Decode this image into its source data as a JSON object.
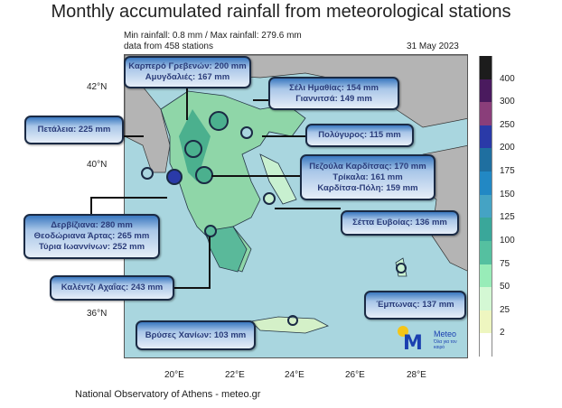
{
  "title": "Monthly accumulated rainfall from meteorological stations",
  "info": {
    "minmax": "Min rainfall: 0.8 mm / Max rainfall: 279.6 mm",
    "stations": "data from 458 stations",
    "date": "31 May 2023"
  },
  "labels": {
    "karpero": [
      "Καρπερό Γρεβενών: 200 mm",
      "Αμυγδαλιές: 167 mm"
    ],
    "seli": [
      "Σέλι Ημαθίας: 154 mm",
      "Γιαννιτσά: 149 mm"
    ],
    "petaleia": [
      "Πετάλεια: 225 mm"
    ],
    "polygyros": [
      "Πολύγυρος: 115 mm"
    ],
    "pezoula": [
      "Πεζούλα Καρδίτσας: 170 mm",
      "Τρίκαλα: 161 mm",
      "Καρδίτσα-Πόλη: 159 mm"
    ],
    "dervizi": [
      "Δερβίζιανα: 280 mm",
      "Θεοδώριανα Άρτας: 265 mm",
      "Τύρια Ιωαννίνων: 252 mm"
    ],
    "setta": [
      "Σέττα Ευβοίας: 136 mm"
    ],
    "kalentzi": [
      "Καλέντζι Αχαΐας: 243 mm"
    ],
    "emponas": [
      "Έμπωνας: 137 mm"
    ],
    "vryses": [
      "Βρύσες Χανίων: 103 mm"
    ]
  },
  "lat_ticks": [
    "42°N",
    "40°N",
    "36°N"
  ],
  "lon_ticks": [
    "20°E",
    "22°E",
    "24°E",
    "26°E",
    "28°E"
  ],
  "colorbar": {
    "labels": [
      "400",
      "300",
      "250",
      "200",
      "175",
      "150",
      "125",
      "100",
      "75",
      "50",
      "25",
      "2"
    ],
    "colors": [
      "#1c1c1c",
      "#4a1a5e",
      "#8a3e7a",
      "#2a3aa8",
      "#1f6fa0",
      "#2288c4",
      "#45a3c4",
      "#3aa79a",
      "#55c0a0",
      "#98ecb8",
      "#d4f8d4",
      "#eef6c0",
      "#ffffff"
    ]
  },
  "logo": {
    "name": "Meteo",
    "tagline": "Όλα για τον καιρό"
  },
  "footer": "National Observatory of Athens - meteo.gr"
}
